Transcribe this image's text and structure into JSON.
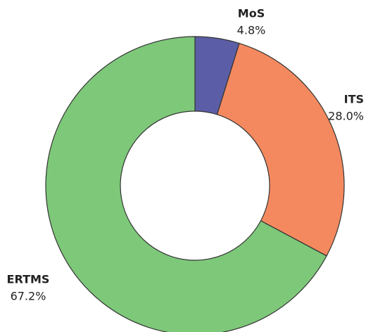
{
  "chart_data": {
    "type": "donut",
    "categories": [
      "MoS",
      "ITS",
      "ERTMS"
    ],
    "values": [
      4.8,
      28.0,
      67.2
    ],
    "value_labels": [
      "4.8%",
      "28.0%",
      "67.2%"
    ],
    "colors": [
      "#5b5ea6",
      "#f4895f",
      "#7ec87a"
    ]
  }
}
